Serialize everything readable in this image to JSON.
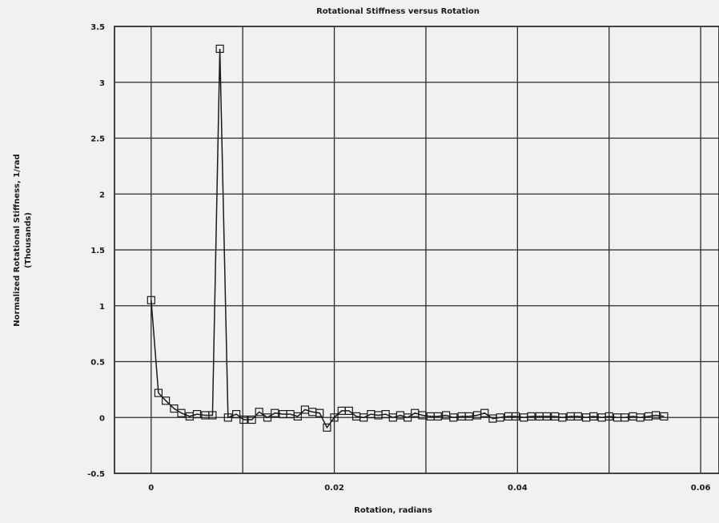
{
  "chart_data": {
    "type": "line",
    "title": "Rotational Stiffness versus Rotation",
    "xlabel": "Rotation, radians",
    "ylabel": "Normalized Rotational Stiffness, 1/rad",
    "ylabel_sub": "(Thousands)",
    "xlim": [
      -0.004,
      0.062
    ],
    "ylim": [
      -0.5,
      3.5
    ],
    "xticks": [
      0,
      0.02,
      0.04,
      0.06
    ],
    "xtick_labels": [
      "0",
      "0.02",
      "0.04",
      "0.06"
    ],
    "yticks": [
      -0.5,
      0,
      0.5,
      1,
      1.5,
      2,
      2.5,
      3,
      3.5
    ],
    "ytick_labels": [
      "-0.5",
      "0",
      "0.5",
      "1",
      "1.5",
      "2",
      "2.5",
      "3",
      "3.5"
    ],
    "grid": true,
    "marker": "square",
    "series": [
      {
        "x": [
          0,
          0.0008,
          0.0016,
          0.0025,
          0.0033,
          0.0042,
          0.005,
          0.0059,
          0.0067,
          0.0075,
          0.0084,
          0.0093,
          0.0101,
          0.011,
          0.0118,
          0.0127,
          0.0135,
          0.0144,
          0.0152,
          0.016,
          0.0168,
          0.0176,
          0.0184,
          0.0192,
          0.02,
          0.0208,
          0.0216,
          0.0224,
          0.0232,
          0.024,
          0.0248,
          0.0256,
          0.0264,
          0.0272,
          0.028,
          0.0288,
          0.0296,
          0.0305,
          0.0313,
          0.0322,
          0.033,
          0.0339,
          0.0347,
          0.0356,
          0.0364,
          0.0373,
          0.0381,
          0.039,
          0.0398,
          0.0407,
          0.0415,
          0.0424,
          0.0432,
          0.0441,
          0.0449,
          0.0458,
          0.0466,
          0.0475,
          0.0483,
          0.0492,
          0.05,
          0.0509,
          0.0517,
          0.0526,
          0.0534,
          0.0543,
          0.0551,
          0.056
        ],
        "y": [
          1.05,
          0.22,
          0.15,
          0.08,
          0.04,
          0.01,
          0.03,
          0.02,
          0.02,
          3.3,
          0.0,
          0.03,
          -0.02,
          -0.02,
          0.05,
          0.0,
          0.04,
          0.03,
          0.03,
          0.01,
          0.07,
          0.05,
          0.04,
          -0.09,
          0.0,
          0.06,
          0.06,
          0.01,
          0.0,
          0.03,
          0.02,
          0.03,
          0.0,
          0.02,
          0.0,
          0.04,
          0.02,
          0.01,
          0.01,
          0.02,
          0.0,
          0.01,
          0.01,
          0.02,
          0.04,
          -0.01,
          0.0,
          0.01,
          0.01,
          0.0,
          0.01,
          0.01,
          0.01,
          0.01,
          0.0,
          0.01,
          0.01,
          0.0,
          0.01,
          0.0,
          0.01,
          0.0,
          0.0,
          0.01,
          0.0,
          0.01,
          0.02,
          0.01
        ]
      }
    ]
  },
  "colors": {
    "background": "#f1f1ef",
    "ink": "#1a1a1a",
    "grid": "#2a2a2a"
  }
}
